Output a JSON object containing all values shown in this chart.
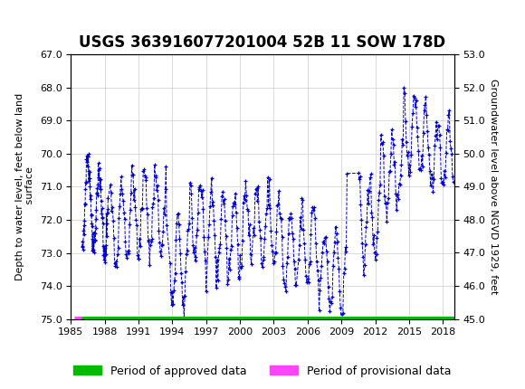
{
  "title": "USGS 363916077201004 52B 11 SOW 178D",
  "ylabel_left": "Depth to water level, feet below land\n surface",
  "ylabel_right": "Groundwater level above NGVD 1929, feet",
  "ylim_left": [
    75.0,
    67.0
  ],
  "ylim_right": [
    45.0,
    53.0
  ],
  "yticks_left": [
    67.0,
    68.0,
    69.0,
    70.0,
    71.0,
    72.0,
    73.0,
    74.0,
    75.0
  ],
  "yticks_right": [
    45.0,
    46.0,
    47.0,
    48.0,
    49.0,
    50.0,
    51.0,
    52.0,
    53.0
  ],
  "xlim": [
    1985,
    2019
  ],
  "xticks": [
    1985,
    1988,
    1991,
    1994,
    1997,
    2000,
    2003,
    2006,
    2009,
    2012,
    2015,
    2018
  ],
  "data_color": "#0000cc",
  "approved_color": "#00bb00",
  "provisional_color": "#ff44ff",
  "header_bg": "#1a6b3c",
  "header_text": "#ffffff",
  "background_color": "#ffffff",
  "plot_bg": "#ffffff",
  "grid_color": "#cccccc",
  "title_fontsize": 12,
  "axis_label_fontsize": 8,
  "tick_fontsize": 8,
  "legend_fontsize": 9,
  "approved_bar_y": 75.0,
  "approved_bar_x_start": 1985.6,
  "approved_bar_x_end": 2019.0,
  "provisional_bar_x_start": 1985.3,
  "provisional_bar_x_end": 1985.9,
  "seed": 42
}
